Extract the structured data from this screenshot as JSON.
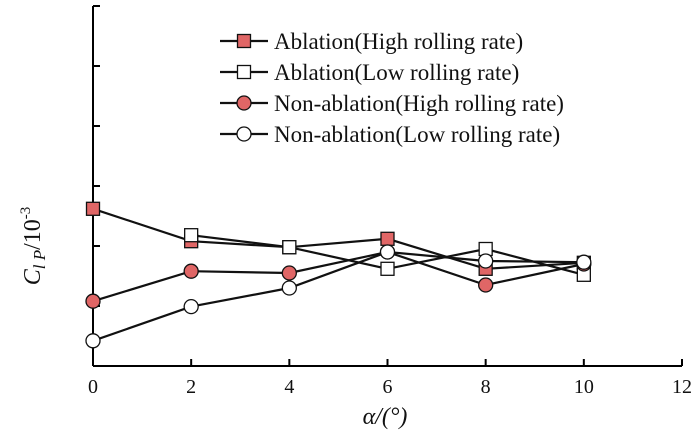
{
  "chart_data": {
    "type": "line",
    "title": "",
    "xlabel": "α/(°)",
    "ylabel": {
      "symbol": "C",
      "subscript": "l P",
      "unit": "/10",
      "exponent": "-3"
    },
    "xlim": [
      0,
      12
    ],
    "xticks": [
      0,
      2,
      4,
      6,
      8,
      10,
      12
    ],
    "ylim": [
      0,
      6
    ],
    "yticks": [
      1,
      2,
      3,
      4,
      5,
      6
    ],
    "y_tick_labels_shown": false,
    "grid": false,
    "legend_position": "top-right",
    "x": [
      0,
      2,
      4,
      6,
      8,
      10
    ],
    "series": [
      {
        "name": "Ablation(High rolling rate)",
        "marker": "square",
        "filled": true,
        "color": "#e06666",
        "values": [
          2.62,
          2.08,
          1.98,
          2.12,
          1.62,
          1.72
        ]
      },
      {
        "name": "Ablation(Low rolling rate)",
        "marker": "square",
        "filled": false,
        "color": "#ffffff",
        "values": [
          null,
          2.18,
          1.98,
          1.62,
          1.95,
          1.52
        ]
      },
      {
        "name": "Non-ablation(High rolling rate)",
        "marker": "circle",
        "filled": true,
        "color": "#e06666",
        "values": [
          1.08,
          1.58,
          1.55,
          1.9,
          1.35,
          1.7
        ]
      },
      {
        "name": "Non-ablation(Low rolling rate)",
        "marker": "circle",
        "filled": false,
        "color": "#ffffff",
        "values": [
          0.42,
          0.99,
          1.3,
          1.9,
          1.75,
          1.73
        ]
      }
    ]
  }
}
